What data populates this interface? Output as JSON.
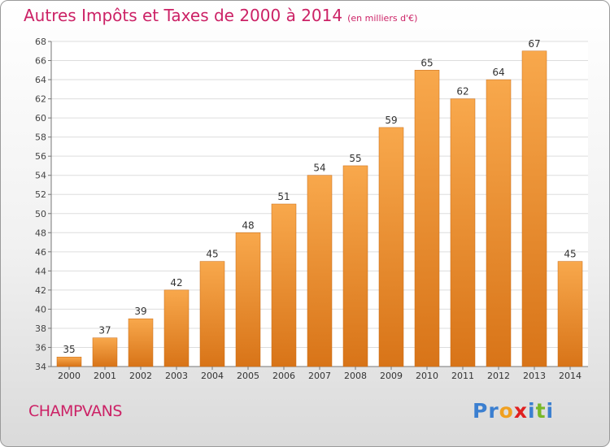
{
  "title": "Autres Impôts et Taxes de 2000 à 2014",
  "unit_note": "(en milliers d'€)",
  "commune": "CHAMPVANS",
  "brand": {
    "letters": [
      "P",
      "r",
      "o",
      "x",
      "i",
      "t",
      "i"
    ],
    "colors": [
      "#3b7fd0",
      "#3b7fd0",
      "#f0a020",
      "#e02020",
      "#3b7fd0",
      "#78b828",
      "#3b7fd0"
    ]
  },
  "colors": {
    "bar_top": "#f8a84c",
    "bar_bottom": "#d87418",
    "accent": "#cc2266"
  },
  "chart_data": {
    "type": "bar",
    "categories": [
      "2000",
      "2001",
      "2002",
      "2003",
      "2004",
      "2005",
      "2006",
      "2007",
      "2008",
      "2009",
      "2010",
      "2011",
      "2012",
      "2013",
      "2014"
    ],
    "values": [
      35,
      37,
      39,
      42,
      45,
      48,
      51,
      54,
      55,
      59,
      65,
      62,
      64,
      67,
      45
    ],
    "title": "Autres Impôts et Taxes de 2000 à 2014",
    "ylabel": "",
    "xlabel": "",
    "ylim": [
      34,
      68
    ],
    "yticks": [
      34,
      36,
      38,
      40,
      42,
      44,
      46,
      48,
      50,
      52,
      54,
      56,
      58,
      60,
      62,
      64,
      66,
      68
    ],
    "grid": true
  }
}
